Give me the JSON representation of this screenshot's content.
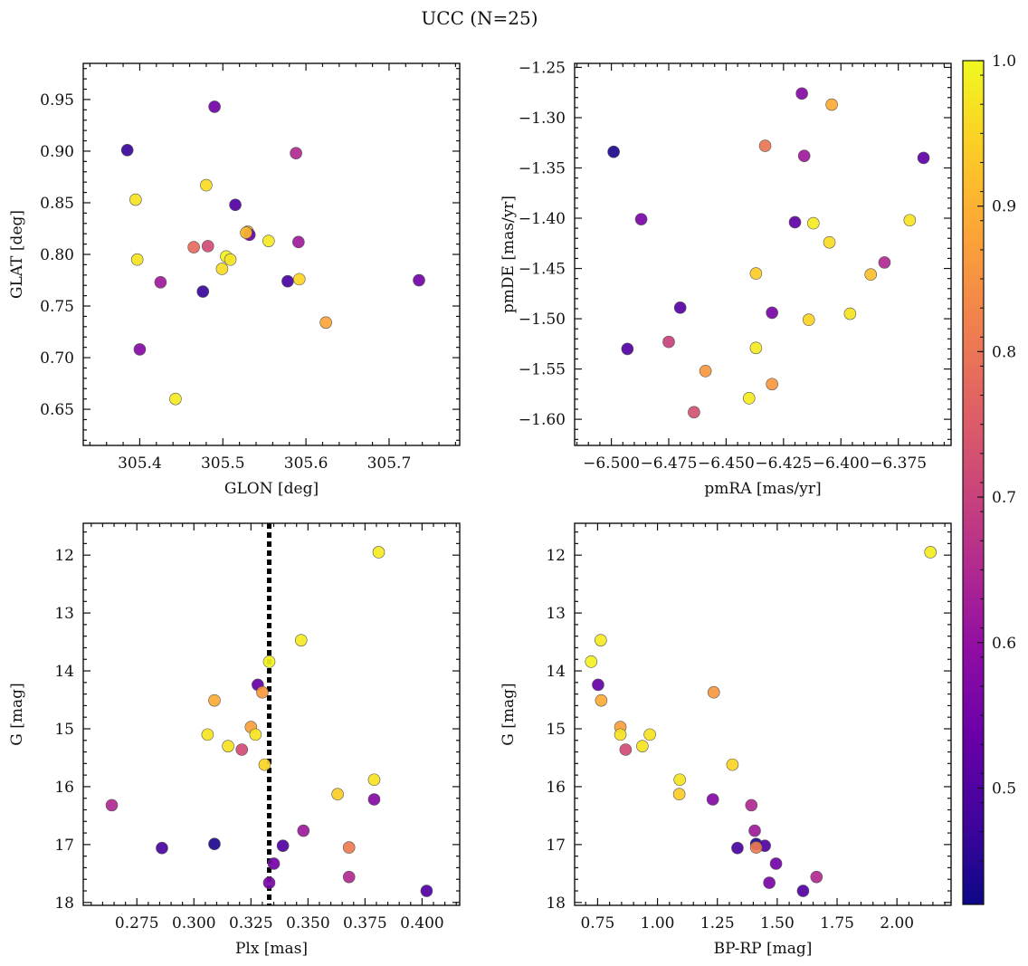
{
  "figure": {
    "title": "UCC (N=25)"
  },
  "colorbar": {
    "colormap": "plasma",
    "vmin": 0.42,
    "vmax": 1.0,
    "ticks": [
      0.5,
      0.6,
      0.7,
      0.8,
      0.9,
      1.0
    ],
    "tick_labels": [
      "0.5",
      "0.6",
      "0.7",
      "0.8",
      "0.9",
      "1.0"
    ]
  },
  "chart_data": [
    {
      "type": "scatter",
      "title": "",
      "xlabel": "GLON [deg]",
      "ylabel": "GLAT [deg]",
      "xlim": [
        305.332,
        305.785
      ],
      "ylim": [
        0.615,
        0.985
      ],
      "xticks": [
        305.4,
        305.5,
        305.6,
        305.7
      ],
      "xtick_labels": [
        "305.4",
        "305.5",
        "305.6",
        "305.7"
      ],
      "yticks": [
        0.65,
        0.7,
        0.75,
        0.8,
        0.85,
        0.9,
        0.95
      ],
      "ytick_labels": [
        "0.65",
        "0.70",
        "0.75",
        "0.80",
        "0.85",
        "0.90",
        "0.95"
      ],
      "points": [
        {
          "x": 305.385,
          "y": 0.901,
          "c": 0.47
        },
        {
          "x": 305.49,
          "y": 0.943,
          "c": 0.55
        },
        {
          "x": 305.588,
          "y": 0.898,
          "c": 0.65
        },
        {
          "x": 305.395,
          "y": 0.853,
          "c": 0.97
        },
        {
          "x": 305.48,
          "y": 0.867,
          "c": 0.96
        },
        {
          "x": 305.515,
          "y": 0.848,
          "c": 0.5
        },
        {
          "x": 305.53,
          "y": 0.822,
          "c": 0.88
        },
        {
          "x": 305.532,
          "y": 0.819,
          "c": 0.54
        },
        {
          "x": 305.528,
          "y": 0.821,
          "c": 0.91
        },
        {
          "x": 305.465,
          "y": 0.807,
          "c": 0.78
        },
        {
          "x": 305.482,
          "y": 0.808,
          "c": 0.72
        },
        {
          "x": 305.555,
          "y": 0.813,
          "c": 0.98
        },
        {
          "x": 305.591,
          "y": 0.812,
          "c": 0.62
        },
        {
          "x": 305.504,
          "y": 0.798,
          "c": 0.99
        },
        {
          "x": 305.397,
          "y": 0.795,
          "c": 0.97
        },
        {
          "x": 305.509,
          "y": 0.795,
          "c": 0.97
        },
        {
          "x": 305.499,
          "y": 0.786,
          "c": 0.96
        },
        {
          "x": 305.425,
          "y": 0.773,
          "c": 0.62
        },
        {
          "x": 305.476,
          "y": 0.764,
          "c": 0.47
        },
        {
          "x": 305.578,
          "y": 0.774,
          "c": 0.49
        },
        {
          "x": 305.592,
          "y": 0.776,
          "c": 0.95
        },
        {
          "x": 305.736,
          "y": 0.775,
          "c": 0.55
        },
        {
          "x": 305.4,
          "y": 0.708,
          "c": 0.58
        },
        {
          "x": 305.443,
          "y": 0.66,
          "c": 0.98
        },
        {
          "x": 305.624,
          "y": 0.734,
          "c": 0.88
        }
      ]
    },
    {
      "type": "scatter",
      "title": "",
      "xlabel": "pmRA [mas/yr]",
      "ylabel": "pmDE [mas/yr]",
      "xlim": [
        -6.516,
        -6.352
      ],
      "ylim": [
        -1.626,
        -1.246
      ],
      "xticks": [
        -6.5,
        -6.475,
        -6.45,
        -6.425,
        -6.4,
        -6.375
      ],
      "xtick_labels": [
        "−6.500",
        "−6.475",
        "−6.450",
        "−6.425",
        "−6.400",
        "−6.375"
      ],
      "yticks": [
        -1.6,
        -1.55,
        -1.5,
        -1.45,
        -1.4,
        -1.35,
        -1.3,
        -1.25
      ],
      "ytick_labels": [
        "−1.60",
        "−1.55",
        "−1.50",
        "−1.45",
        "−1.40",
        "−1.35",
        "−1.30",
        "−1.25"
      ],
      "points": [
        {
          "x": -6.499,
          "y": -1.334,
          "c": 0.44
        },
        {
          "x": -6.417,
          "y": -1.276,
          "c": 0.58
        },
        {
          "x": -6.404,
          "y": -1.287,
          "c": 0.89
        },
        {
          "x": -6.433,
          "y": -1.328,
          "c": 0.8
        },
        {
          "x": -6.416,
          "y": -1.338,
          "c": 0.62
        },
        {
          "x": -6.364,
          "y": -1.34,
          "c": 0.52
        },
        {
          "x": -6.487,
          "y": -1.401,
          "c": 0.56
        },
        {
          "x": -6.42,
          "y": -1.404,
          "c": 0.52
        },
        {
          "x": -6.412,
          "y": -1.405,
          "c": 0.98
        },
        {
          "x": -6.405,
          "y": -1.424,
          "c": 0.96
        },
        {
          "x": -6.37,
          "y": -1.402,
          "c": 0.97
        },
        {
          "x": -6.381,
          "y": -1.444,
          "c": 0.65
        },
        {
          "x": -6.387,
          "y": -1.456,
          "c": 0.92
        },
        {
          "x": -6.437,
          "y": -1.455,
          "c": 0.94
        },
        {
          "x": -6.47,
          "y": -1.489,
          "c": 0.51
        },
        {
          "x": -6.43,
          "y": -1.494,
          "c": 0.56
        },
        {
          "x": -6.414,
          "y": -1.501,
          "c": 0.95
        },
        {
          "x": -6.396,
          "y": -1.495,
          "c": 0.97
        },
        {
          "x": -6.475,
          "y": -1.523,
          "c": 0.7
        },
        {
          "x": -6.493,
          "y": -1.53,
          "c": 0.5
        },
        {
          "x": -6.437,
          "y": -1.529,
          "c": 0.98
        },
        {
          "x": -6.459,
          "y": -1.552,
          "c": 0.86
        },
        {
          "x": -6.43,
          "y": -1.565,
          "c": 0.86
        },
        {
          "x": -6.44,
          "y": -1.579,
          "c": 0.98
        },
        {
          "x": -6.464,
          "y": -1.593,
          "c": 0.73
        }
      ]
    },
    {
      "type": "scatter",
      "title": "",
      "xlabel": "Plx [mas]",
      "ylabel": "G [mag]",
      "xlim": [
        0.2515,
        0.4165
      ],
      "ylim": [
        18.05,
        11.45
      ],
      "xticks": [
        0.275,
        0.3,
        0.325,
        0.35,
        0.375,
        0.4
      ],
      "xtick_labels": [
        "0.275",
        "0.300",
        "0.325",
        "0.350",
        "0.375",
        "0.400"
      ],
      "yticks": [
        12,
        13,
        14,
        15,
        16,
        17,
        18
      ],
      "ytick_labels": [
        "12",
        "13",
        "14",
        "15",
        "16",
        "17",
        "18"
      ],
      "vline": 0.333,
      "points": [
        {
          "x": 0.381,
          "y": 11.95,
          "c": 0.98
        },
        {
          "x": 0.347,
          "y": 13.47,
          "c": 0.98
        },
        {
          "x": 0.333,
          "y": 13.84,
          "c": 0.99
        },
        {
          "x": 0.328,
          "y": 14.24,
          "c": 0.53
        },
        {
          "x": 0.33,
          "y": 14.37,
          "c": 0.86
        },
        {
          "x": 0.309,
          "y": 14.51,
          "c": 0.89
        },
        {
          "x": 0.325,
          "y": 14.97,
          "c": 0.87
        },
        {
          "x": 0.306,
          "y": 15.1,
          "c": 0.97
        },
        {
          "x": 0.327,
          "y": 15.1,
          "c": 0.97
        },
        {
          "x": 0.315,
          "y": 15.3,
          "c": 0.97
        },
        {
          "x": 0.321,
          "y": 15.36,
          "c": 0.72
        },
        {
          "x": 0.331,
          "y": 15.62,
          "c": 0.95
        },
        {
          "x": 0.379,
          "y": 15.88,
          "c": 0.97
        },
        {
          "x": 0.363,
          "y": 16.13,
          "c": 0.94
        },
        {
          "x": 0.379,
          "y": 16.22,
          "c": 0.58
        },
        {
          "x": 0.264,
          "y": 16.32,
          "c": 0.65
        },
        {
          "x": 0.348,
          "y": 16.76,
          "c": 0.62
        },
        {
          "x": 0.309,
          "y": 16.99,
          "c": 0.44
        },
        {
          "x": 0.339,
          "y": 17.02,
          "c": 0.5
        },
        {
          "x": 0.286,
          "y": 17.06,
          "c": 0.49
        },
        {
          "x": 0.368,
          "y": 17.05,
          "c": 0.81
        },
        {
          "x": 0.335,
          "y": 17.33,
          "c": 0.55
        },
        {
          "x": 0.368,
          "y": 17.56,
          "c": 0.65
        },
        {
          "x": 0.333,
          "y": 17.66,
          "c": 0.56
        },
        {
          "x": 0.402,
          "y": 17.8,
          "c": 0.5
        }
      ]
    },
    {
      "type": "scatter",
      "title": "",
      "xlabel": "BP-RP [mag]",
      "ylabel": "G [mag]",
      "xlim": [
        0.654,
        2.226
      ],
      "ylim": [
        18.05,
        11.45
      ],
      "xticks": [
        0.75,
        1.0,
        1.25,
        1.5,
        1.75,
        2.0
      ],
      "xtick_labels": [
        "0.75",
        "1.00",
        "1.25",
        "1.50",
        "1.75",
        "2.00"
      ],
      "yticks": [
        12,
        13,
        14,
        15,
        16,
        17,
        18
      ],
      "ytick_labels": [
        "12",
        "13",
        "14",
        "15",
        "16",
        "17",
        "18"
      ],
      "points": [
        {
          "x": 2.14,
          "y": 11.95,
          "c": 0.98
        },
        {
          "x": 0.763,
          "y": 13.47,
          "c": 0.98
        },
        {
          "x": 0.723,
          "y": 13.84,
          "c": 0.99
        },
        {
          "x": 0.752,
          "y": 14.24,
          "c": 0.53
        },
        {
          "x": 1.235,
          "y": 14.37,
          "c": 0.86
        },
        {
          "x": 0.765,
          "y": 14.51,
          "c": 0.89
        },
        {
          "x": 0.845,
          "y": 14.97,
          "c": 0.87
        },
        {
          "x": 0.845,
          "y": 15.1,
          "c": 0.97
        },
        {
          "x": 0.968,
          "y": 15.1,
          "c": 0.97
        },
        {
          "x": 0.937,
          "y": 15.3,
          "c": 0.97
        },
        {
          "x": 0.867,
          "y": 15.36,
          "c": 0.72
        },
        {
          "x": 1.313,
          "y": 15.62,
          "c": 0.95
        },
        {
          "x": 1.093,
          "y": 15.88,
          "c": 0.97
        },
        {
          "x": 1.091,
          "y": 16.13,
          "c": 0.94
        },
        {
          "x": 1.231,
          "y": 16.22,
          "c": 0.58
        },
        {
          "x": 1.392,
          "y": 16.32,
          "c": 0.65
        },
        {
          "x": 1.406,
          "y": 16.76,
          "c": 0.62
        },
        {
          "x": 1.412,
          "y": 16.99,
          "c": 0.44
        },
        {
          "x": 1.448,
          "y": 17.02,
          "c": 0.5
        },
        {
          "x": 1.334,
          "y": 17.06,
          "c": 0.49
        },
        {
          "x": 1.412,
          "y": 17.05,
          "c": 0.81
        },
        {
          "x": 1.495,
          "y": 17.33,
          "c": 0.55
        },
        {
          "x": 1.664,
          "y": 17.56,
          "c": 0.65
        },
        {
          "x": 1.467,
          "y": 17.66,
          "c": 0.56
        },
        {
          "x": 1.608,
          "y": 17.8,
          "c": 0.5
        }
      ]
    }
  ]
}
